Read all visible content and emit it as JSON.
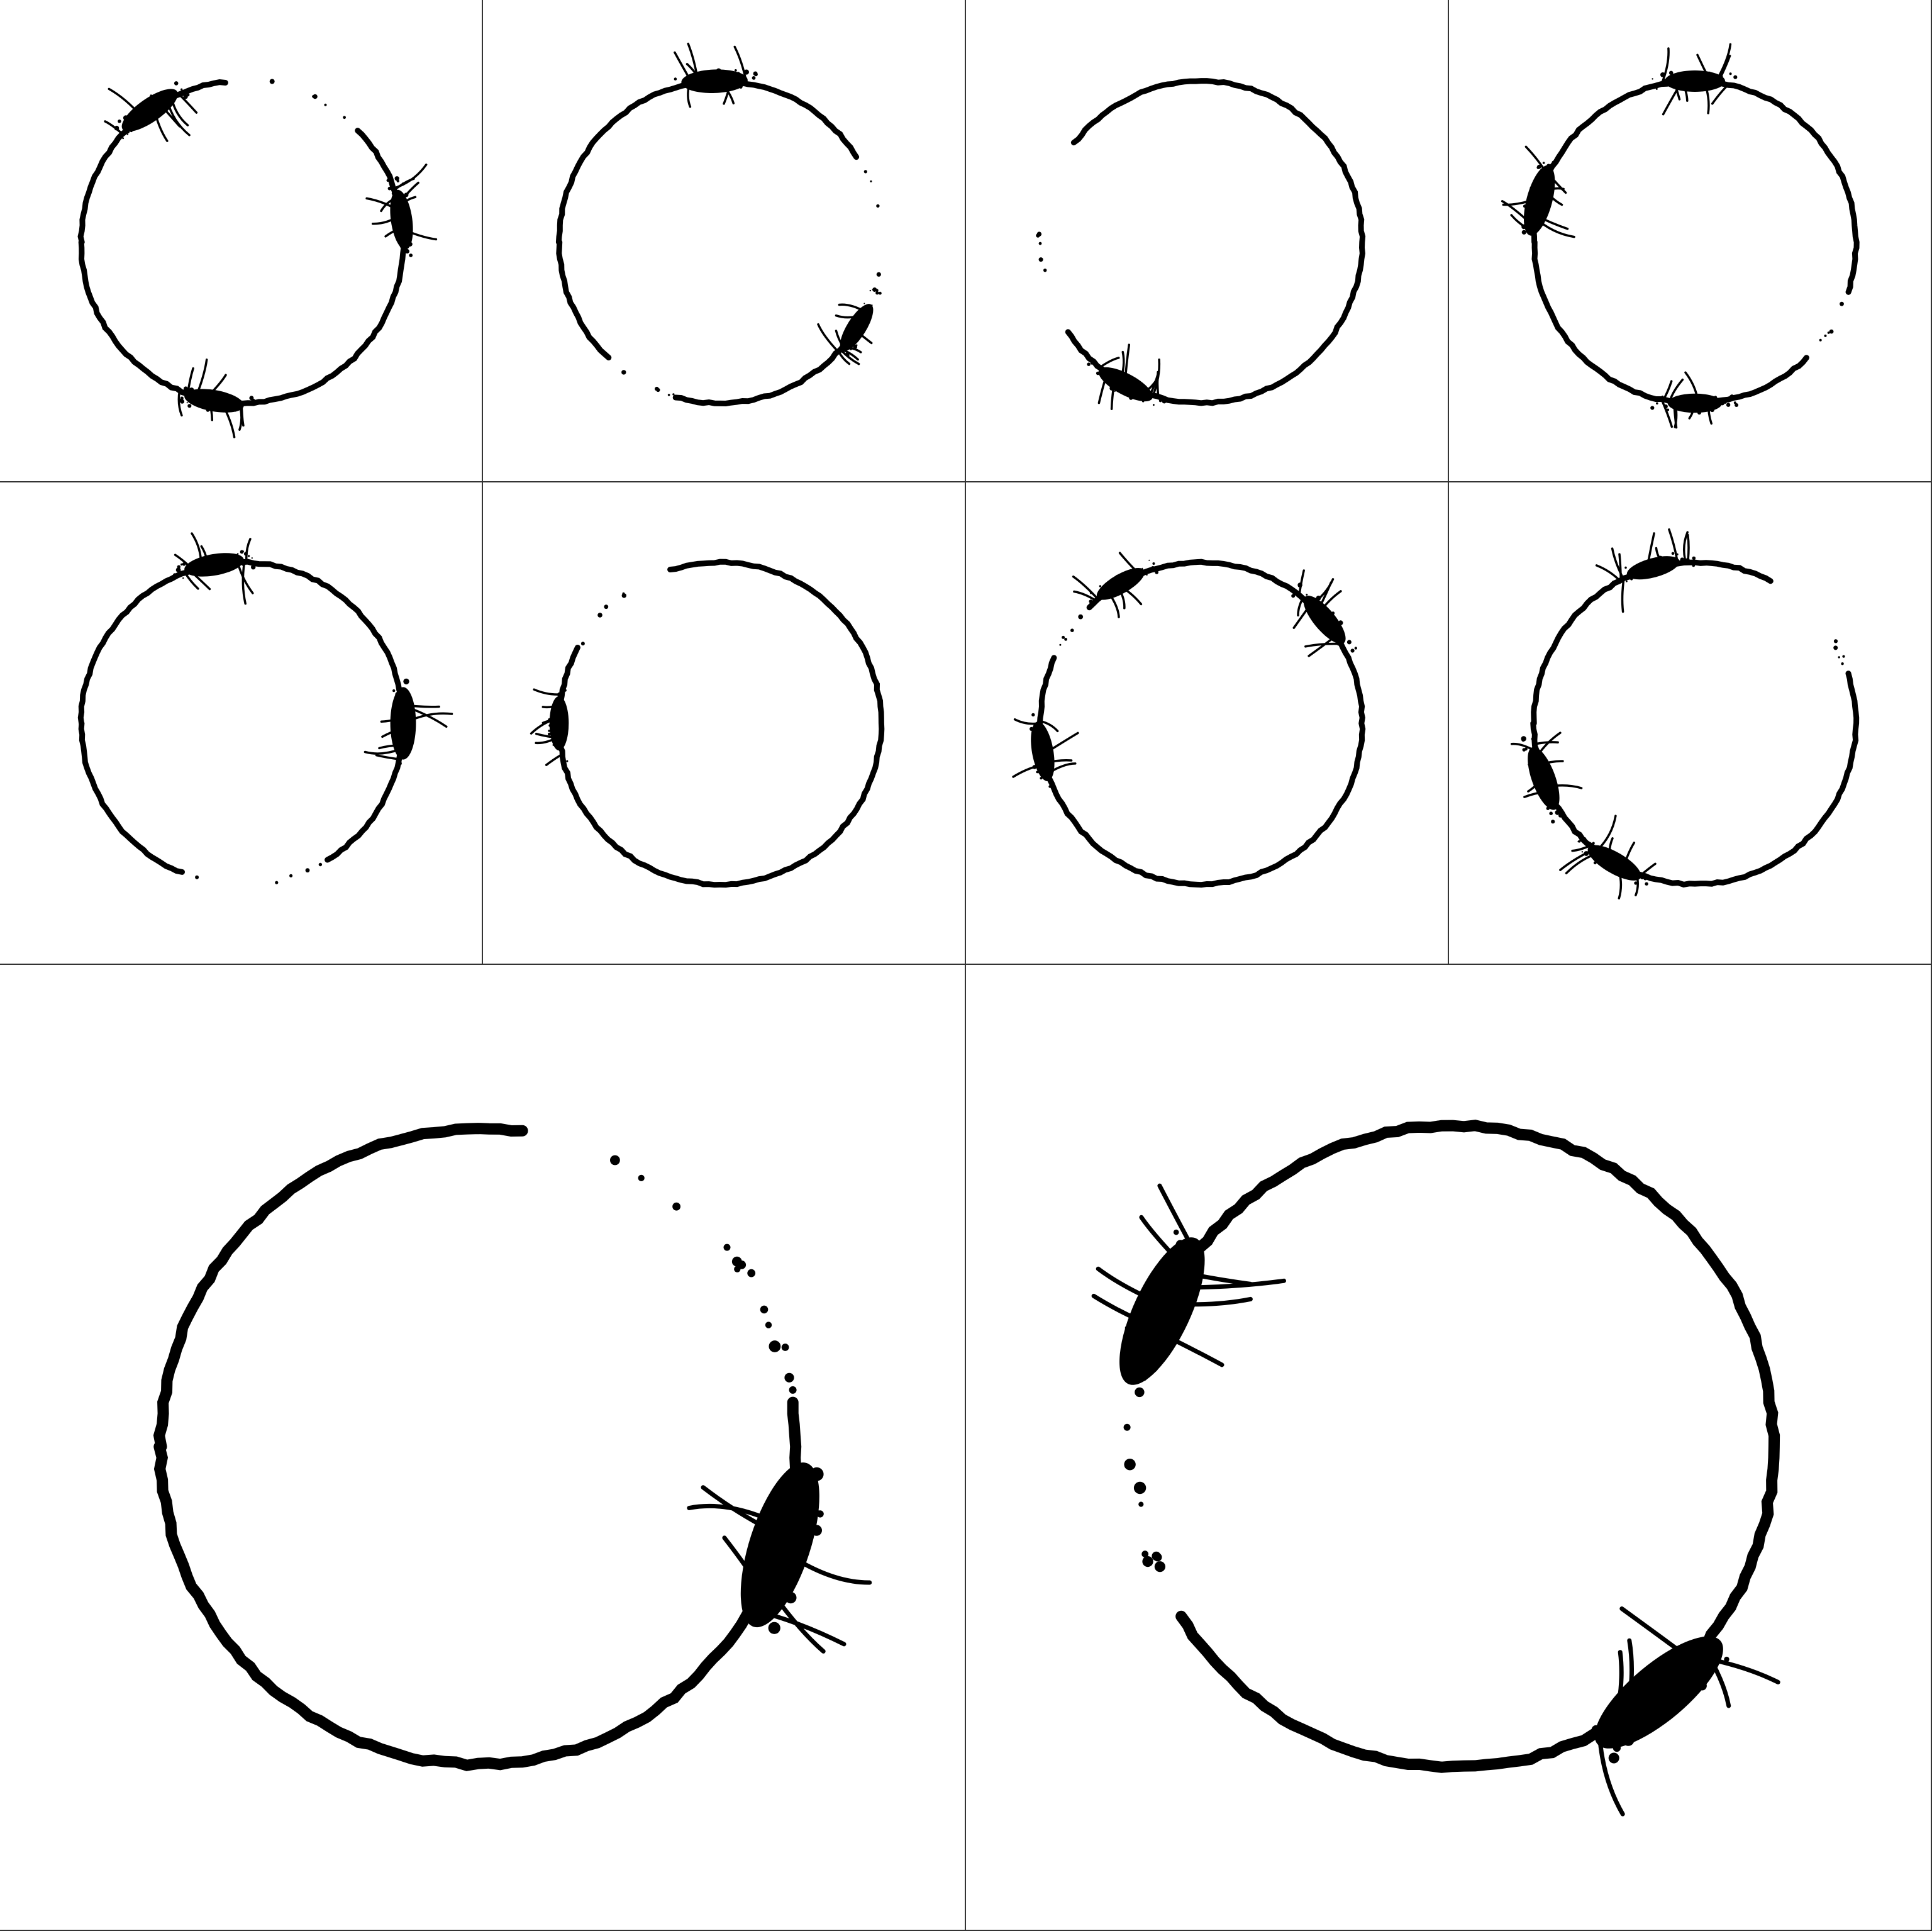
{
  "sheet": {
    "background": "#ffffff",
    "ink": "#000000",
    "grid_line": "#333333"
  },
  "panels": [
    {
      "glyph": "logogram-small-1",
      "gaps": [
        [
          -95,
          -45
        ]
      ],
      "clusters": [
        [
          -125,
          1.1
        ],
        [
          -8,
          1.0
        ],
        [
          100,
          1.0
        ]
      ]
    },
    {
      "glyph": "logogram-small-2",
      "gaps": [
        [
          -30,
          32
        ],
        [
          107,
          133
        ]
      ],
      "clusters": [
        [
          -92,
          1.1
        ],
        [
          32,
          0.9
        ]
      ]
    },
    {
      "glyph": "logogram-small-3",
      "gaps": [
        [
          148,
          217
        ]
      ],
      "clusters": [
        [
          118,
          1.0
        ]
      ]
    },
    {
      "glyph": "logogram-small-4",
      "gaps": [
        [
          20,
          45
        ]
      ],
      "clusters": [
        [
          -90,
          1.0
        ],
        [
          -165,
          1.2
        ],
        [
          90,
          0.9
        ]
      ]
    },
    {
      "glyph": "logogram-small-5",
      "gaps": [
        [
          60,
          110
        ]
      ],
      "clusters": [
        [
          -100,
          1.0
        ],
        [
          0,
          1.2
        ]
      ]
    },
    {
      "glyph": "logogram-small-6",
      "gaps": [
        [
          210,
          250
        ]
      ],
      "clusters": [
        [
          180,
          0.9
        ]
      ]
    },
    {
      "glyph": "logogram-small-7",
      "gaps": [
        [
          205,
          225
        ]
      ],
      "clusters": [
        [
          -120,
          0.9
        ],
        [
          -40,
          1.0
        ],
        [
          170,
          1.0
        ]
      ]
    },
    {
      "glyph": "logogram-small-8",
      "gaps": [
        [
          -60,
          -20
        ]
      ],
      "clusters": [
        [
          -105,
          0.9
        ],
        [
          160,
          1.1
        ],
        [
          120,
          1.0
        ]
      ]
    },
    {
      "glyph": "logogram-large-1",
      "gaps": [
        [
          -80,
          -10
        ]
      ],
      "clusters": [
        [
          18,
          1.5
        ]
      ]
    },
    {
      "glyph": "logogram-large-2",
      "gaps": [
        [
          150,
          205
        ],
        [
          205,
          215
        ]
      ],
      "clusters": [
        [
          -155,
          1.4
        ],
        [
          50,
          1.4
        ]
      ]
    }
  ]
}
